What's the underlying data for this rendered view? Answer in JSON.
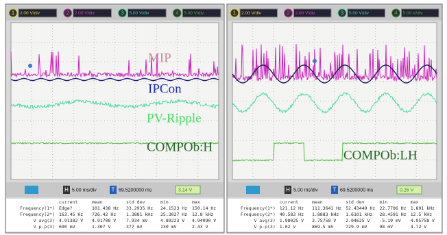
{
  "panels": [
    {
      "channels": [
        {
          "num": "1",
          "scale": "2.00 V/div"
        },
        {
          "num": "2",
          "scale": "2.00 V/div"
        },
        {
          "num": "3",
          "scale": "5.00 V/div"
        },
        {
          "num": "4",
          "scale": "5.00 V/div"
        }
      ],
      "labels": [
        "MIP",
        "IPCon",
        "PV-Ripple",
        "COMPOb:H"
      ],
      "timebase_marker": "H",
      "timebase": "5.00 ms/div",
      "trigger_marker": "T",
      "trigger_pos": "69.5200000 ms",
      "trigger_level": "3.14 V",
      "measurements": {
        "header": [
          "current",
          "mean",
          "std dev",
          "min",
          "max"
        ],
        "rows": [
          {
            "label": "Frequency(1*)",
            "values": [
              "Edge?",
              "101.438 Hz",
              "33.2935 Hz",
              "24.1523 Hz",
              "150.14 Hz"
            ]
          },
          {
            "label": "Frequency(2*)",
            "values": [
              "163.45 Hz",
              "726.42 Hz",
              "1.3881 kHz",
              "25.3027 Hz",
              "12.8 kHz"
            ]
          },
          {
            "label": "V avg(3)",
            "values": [
              "4.91382 V",
              "4.91708 V",
              "7.934 mV",
              "4.89223 V",
              "4.94090 V"
            ]
          },
          {
            "label": "V p-p(3)",
            "values": [
              "690 mV",
              "1.307 V",
              "377 mV",
              "130 mV",
              "2.43 V"
            ]
          }
        ]
      }
    },
    {
      "channels": [
        {
          "num": "1",
          "scale": "2.00 V/div"
        },
        {
          "num": "2",
          "scale": "2.00 V/div"
        },
        {
          "num": "3",
          "scale": "5.00 V/div"
        },
        {
          "num": "4",
          "scale": "5.00 V/div"
        }
      ],
      "labels": [
        "COMPOb:LH"
      ],
      "timebase_marker": "H",
      "timebase": "5.00 ms/div",
      "trigger_marker": "T",
      "trigger_pos": "69.5200000 ms",
      "trigger_level": "0.26 V",
      "measurements": {
        "header": [
          "current",
          "mean",
          "std dev",
          "min",
          "max"
        ],
        "rows": [
          {
            "label": "Frequency(1*)",
            "values": [
              "121.12 Hz",
              "111.3641 Hz",
              "52.43449 Hz",
              "22.7706 Hz",
              "1.891 kHz"
            ]
          },
          {
            "label": "Frequency(2*)",
            "values": [
              "40.583 Hz",
              "1.8883 kHz",
              "1.6101 kHz",
              "28.4591 Hz",
              "12.5 kHz"
            ]
          },
          {
            "label": "V avg(3)",
            "values": [
              "1.98025 V",
              "2.75758 V",
              "2.04625 V",
              "-5.19 mV",
              "4.95758 V"
            ]
          },
          {
            "label": "V p-p(3)",
            "values": [
              "1.02 V",
              "869.5 mV",
              "729.9 mV",
              "98 mV",
              "4.72 V"
            ]
          }
        ]
      }
    }
  ]
}
